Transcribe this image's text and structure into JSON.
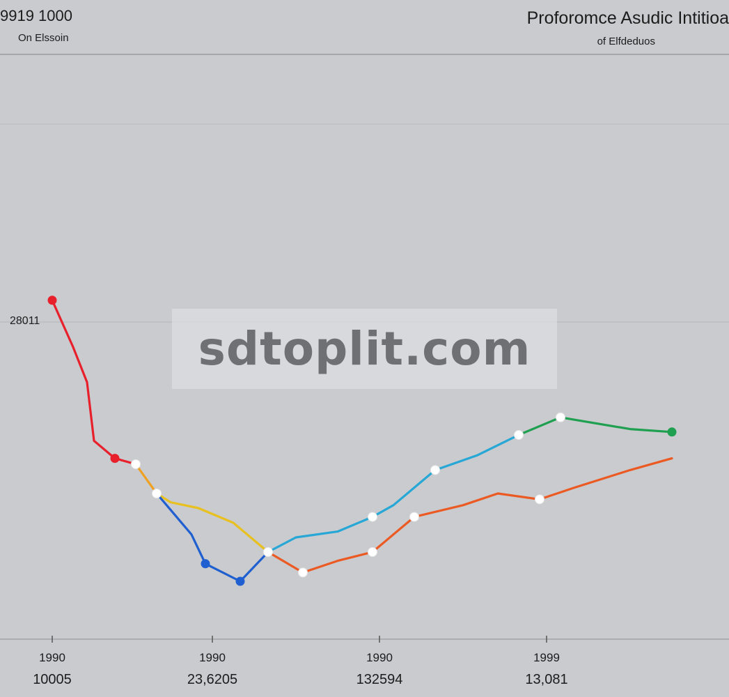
{
  "header": {
    "left_title": "9919 1000",
    "left_subtitle": "On Elssoin",
    "right_title": "Proforomce Asudic Intitioa",
    "right_subtitle": "of Elfdeduos"
  },
  "watermark": "sdtoplit.com",
  "colors": {
    "background": "#c9cbce",
    "red": "#e8202c",
    "orange": "#f0a020",
    "yellow": "#e8c020",
    "blue": "#1f5fd0",
    "cyan": "#26a7d6",
    "green": "#1f9f50",
    "orange_red": "#ec5a24"
  },
  "chart_data": {
    "type": "line",
    "y_label": "28011",
    "ylim": [
      0,
      100
    ],
    "xlim": [
      0,
      100
    ],
    "grid": "horizontal",
    "x_ticks": [
      {
        "x": 5,
        "label": "1990",
        "value": "10005"
      },
      {
        "x": 28,
        "label": "1990",
        "value": "23,6205"
      },
      {
        "x": 52,
        "label": "1990",
        "value": "132594"
      },
      {
        "x": 76,
        "label": "1999",
        "value": "13,081"
      }
    ],
    "series": [
      {
        "color": "#e8202c",
        "points": [
          [
            5,
            58
          ],
          [
            8,
            50
          ],
          [
            10,
            44
          ],
          [
            11,
            34
          ],
          [
            14,
            31
          ],
          [
            17,
            30
          ]
        ],
        "markers": [
          [
            5,
            58,
            "red"
          ],
          [
            14,
            31,
            "red"
          ],
          [
            17,
            30,
            "white"
          ]
        ]
      },
      {
        "color": "#f0a020",
        "points": [
          [
            17,
            30
          ],
          [
            20,
            25
          ]
        ],
        "markers": [
          [
            20,
            25,
            "white"
          ]
        ]
      },
      {
        "color": "#e8c020",
        "points": [
          [
            20,
            25
          ],
          [
            22,
            23.5
          ],
          [
            26,
            22.5
          ],
          [
            31,
            20
          ],
          [
            36,
            15
          ]
        ],
        "markers": []
      },
      {
        "color": "#1f5fd0",
        "points": [
          [
            20,
            25
          ],
          [
            25,
            18
          ],
          [
            27,
            13
          ],
          [
            32,
            10
          ],
          [
            36,
            15
          ]
        ],
        "markers": [
          [
            27,
            13,
            "blue"
          ],
          [
            32,
            10,
            "blue"
          ]
        ]
      },
      {
        "color": "#26a7d6",
        "points": [
          [
            36,
            15
          ],
          [
            40,
            17.5
          ],
          [
            46,
            18.5
          ],
          [
            51,
            21
          ],
          [
            54,
            23
          ],
          [
            60,
            29
          ],
          [
            66,
            31.5
          ],
          [
            72,
            35
          ]
        ],
        "markers": [
          [
            36,
            15,
            "white"
          ],
          [
            51,
            21,
            "white"
          ],
          [
            60,
            29,
            "white"
          ],
          [
            72,
            35,
            "white"
          ]
        ]
      },
      {
        "color": "#1f9f50",
        "points": [
          [
            72,
            35
          ],
          [
            78,
            38
          ],
          [
            88,
            36
          ],
          [
            94,
            35.5
          ]
        ],
        "markers": [
          [
            78,
            38,
            "white"
          ],
          [
            94,
            35.5,
            "green"
          ]
        ]
      },
      {
        "color": "#ec5a24",
        "points": [
          [
            36,
            15
          ],
          [
            41,
            11.5
          ],
          [
            46,
            13.5
          ],
          [
            51,
            15
          ],
          [
            57,
            21
          ],
          [
            64,
            23
          ],
          [
            69,
            25
          ],
          [
            75,
            24
          ],
          [
            80,
            26
          ],
          [
            88,
            29
          ],
          [
            94,
            31
          ]
        ],
        "markers": [
          [
            41,
            11.5,
            "white"
          ],
          [
            51,
            15,
            "white"
          ],
          [
            57,
            21,
            "white"
          ],
          [
            75,
            24,
            "white"
          ]
        ]
      }
    ]
  }
}
